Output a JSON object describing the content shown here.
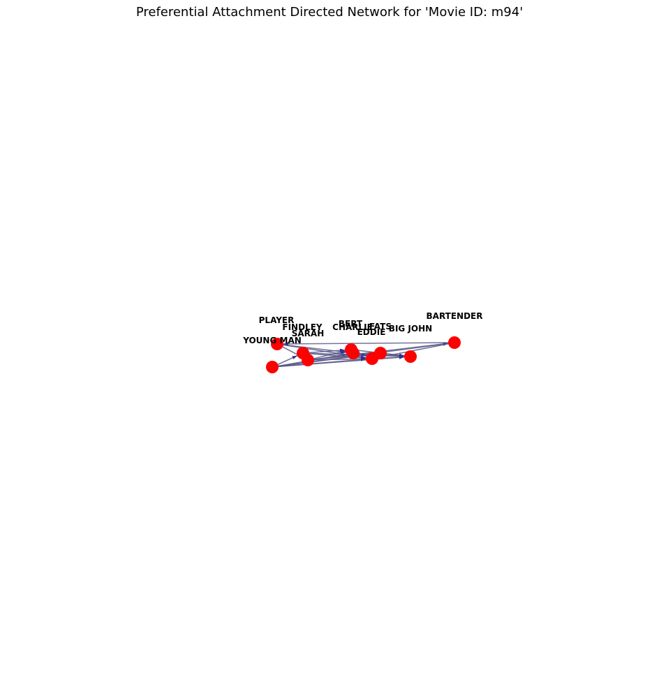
{
  "title": "Preferential Attachment Directed Network for 'Movie ID: m94'",
  "colors": {
    "node": "#ff0000",
    "edge": "#5b5b8a",
    "arrow": "#3a2f8f"
  },
  "nodes": [
    {
      "id": "PLAYER",
      "label": "PLAYER"
    },
    {
      "id": "YOUNG MAN",
      "label": "YOUNG MAN"
    },
    {
      "id": "FINDLEY",
      "label": "FINDLEY"
    },
    {
      "id": "SARAH",
      "label": "SARAH"
    },
    {
      "id": "BERT",
      "label": "BERT"
    },
    {
      "id": "CHARLIE",
      "label": "CHARLIE"
    },
    {
      "id": "FATS",
      "label": "FATS"
    },
    {
      "id": "EDDIE",
      "label": "EDDIE"
    },
    {
      "id": "BIG JOHN",
      "label": "BIG JOHN"
    },
    {
      "id": "BARTENDER",
      "label": "BARTENDER"
    }
  ],
  "edges": [
    [
      "PLAYER",
      "CHARLIE"
    ],
    [
      "PLAYER",
      "EDDIE"
    ],
    [
      "PLAYER",
      "SARAH"
    ],
    [
      "YOUNG MAN",
      "EDDIE"
    ],
    [
      "YOUNG MAN",
      "BARTENDER"
    ],
    [
      "YOUNG MAN",
      "FATS"
    ],
    [
      "YOUNG MAN",
      "BIG JOHN"
    ],
    [
      "YOUNG MAN",
      "FINDLEY"
    ],
    [
      "YOUNG MAN",
      "CHARLIE"
    ],
    [
      "FINDLEY",
      "EDDIE"
    ],
    [
      "FINDLEY",
      "BIG JOHN"
    ],
    [
      "FINDLEY",
      "BERT"
    ],
    [
      "SARAH",
      "EDDIE"
    ],
    [
      "SARAH",
      "BARTENDER"
    ],
    [
      "SARAH",
      "FATS"
    ],
    [
      "SARAH",
      "BERT"
    ],
    [
      "BERT",
      "EDDIE"
    ],
    [
      "BERT",
      "BIG JOHN"
    ],
    [
      "CHARLIE",
      "BIG JOHN"
    ],
    [
      "FATS",
      "EDDIE"
    ],
    [
      "FATS",
      "BIG JOHN"
    ],
    [
      "EDDIE",
      "BIG JOHN"
    ],
    [
      "BARTENDER",
      "PLAYER"
    ],
    [
      "BARTENDER",
      "EDDIE"
    ]
  ]
}
